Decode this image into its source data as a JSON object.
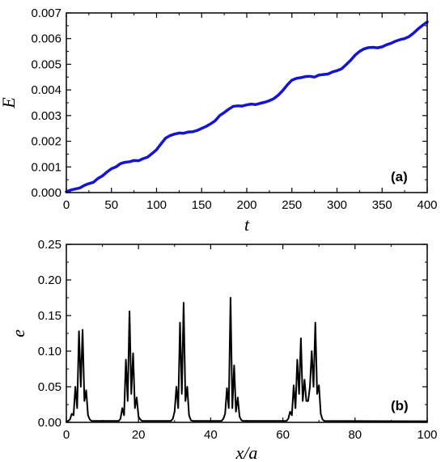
{
  "chart_data": [
    {
      "type": "line",
      "panel_label": "(a)",
      "xlabel": "t",
      "ylabel": "E",
      "xlim": [
        0,
        400
      ],
      "ylim": [
        0,
        0.007
      ],
      "xticks": [
        "0",
        "50",
        "100",
        "150",
        "200",
        "250",
        "300",
        "350",
        "400"
      ],
      "yticks": [
        "0.000",
        "0.001",
        "0.002",
        "0.003",
        "0.004",
        "0.005",
        "0.006",
        "0.007"
      ],
      "grid": false,
      "series": [
        {
          "color": "#1414d2",
          "x": [
            0,
            5,
            10,
            15,
            20,
            25,
            30,
            35,
            40,
            45,
            50,
            55,
            60,
            65,
            70,
            75,
            80,
            85,
            90,
            95,
            100,
            105,
            110,
            115,
            120,
            125,
            130,
            135,
            140,
            145,
            150,
            155,
            160,
            165,
            170,
            175,
            180,
            185,
            190,
            195,
            200,
            205,
            210,
            215,
            220,
            225,
            230,
            235,
            240,
            245,
            250,
            255,
            260,
            265,
            270,
            275,
            280,
            285,
            290,
            295,
            300,
            305,
            310,
            315,
            320,
            325,
            330,
            335,
            340,
            345,
            350,
            355,
            360,
            365,
            370,
            375,
            380,
            385,
            390,
            395,
            400
          ],
          "y": [
            3e-05,
            0.0001,
            0.00014,
            0.00018,
            0.00028,
            0.00035,
            0.0004,
            0.00055,
            0.00065,
            0.0008,
            0.00093,
            0.001,
            0.00113,
            0.00118,
            0.0012,
            0.00125,
            0.00124,
            0.00132,
            0.00138,
            0.00152,
            0.00167,
            0.0019,
            0.00212,
            0.00222,
            0.00228,
            0.00232,
            0.00231,
            0.00236,
            0.00237,
            0.00242,
            0.0025,
            0.00258,
            0.00268,
            0.0028,
            0.003,
            0.00312,
            0.00325,
            0.00336,
            0.00338,
            0.00337,
            0.00342,
            0.00345,
            0.00343,
            0.00348,
            0.00352,
            0.00358,
            0.00366,
            0.0038,
            0.00398,
            0.0042,
            0.00438,
            0.00445,
            0.00448,
            0.00452,
            0.00453,
            0.0045,
            0.00458,
            0.0046,
            0.00462,
            0.0047,
            0.00475,
            0.00482,
            0.00498,
            0.00515,
            0.00535,
            0.0055,
            0.0056,
            0.00565,
            0.00566,
            0.00564,
            0.00568,
            0.00576,
            0.00582,
            0.0059,
            0.00596,
            0.006,
            0.00608,
            0.00622,
            0.00638,
            0.00652,
            0.00665
          ]
        }
      ]
    },
    {
      "type": "line",
      "panel_label": "(b)",
      "xlabel": "x/a",
      "ylabel": "e",
      "xlim": [
        0,
        100
      ],
      "ylim": [
        0,
        0.25
      ],
      "xticks": [
        "0",
        "20",
        "40",
        "60",
        "80",
        "100"
      ],
      "yticks": [
        "0.00",
        "0.05",
        "0.10",
        "0.15",
        "0.20",
        "0.25"
      ],
      "grid": false,
      "series": [
        {
          "color": "#000000",
          "peaks": [
            [
              1.0,
              0.004
            ],
            [
              1.5,
              0.012
            ],
            [
              2.0,
              0.01
            ],
            [
              2.5,
              0.05
            ],
            [
              3.0,
              0.02
            ],
            [
              3.5,
              0.128
            ],
            [
              4.0,
              0.05
            ],
            [
              4.5,
              0.13
            ],
            [
              5.0,
              0.03
            ],
            [
              5.5,
              0.045
            ],
            [
              6.0,
              0.01
            ],
            [
              6.5,
              0.004
            ],
            [
              15.0,
              0.005
            ],
            [
              15.5,
              0.02
            ],
            [
              16.0,
              0.01
            ],
            [
              16.5,
              0.088
            ],
            [
              17.0,
              0.03
            ],
            [
              17.5,
              0.156
            ],
            [
              18.0,
              0.04
            ],
            [
              18.5,
              0.097
            ],
            [
              19.0,
              0.02
            ],
            [
              19.5,
              0.035
            ],
            [
              20.0,
              0.008
            ],
            [
              20.5,
              0.004
            ],
            [
              29.5,
              0.005
            ],
            [
              30.0,
              0.015
            ],
            [
              30.5,
              0.05
            ],
            [
              31.0,
              0.02
            ],
            [
              31.5,
              0.14
            ],
            [
              32.0,
              0.04
            ],
            [
              32.5,
              0.168
            ],
            [
              33.0,
              0.03
            ],
            [
              33.5,
              0.05
            ],
            [
              34.0,
              0.01
            ],
            [
              34.5,
              0.003
            ],
            [
              43.5,
              0.005
            ],
            [
              44.0,
              0.012
            ],
            [
              44.5,
              0.048
            ],
            [
              45.0,
              0.02
            ],
            [
              45.5,
              0.175
            ],
            [
              46.0,
              0.02
            ],
            [
              46.5,
              0.08
            ],
            [
              47.0,
              0.015
            ],
            [
              47.5,
              0.035
            ],
            [
              48.0,
              0.008
            ],
            [
              48.5,
              0.003
            ],
            [
              61.5,
              0.005
            ],
            [
              62.0,
              0.015
            ],
            [
              62.5,
              0.01
            ],
            [
              63.0,
              0.052
            ],
            [
              63.5,
              0.02
            ],
            [
              64.0,
              0.088
            ],
            [
              64.5,
              0.04
            ],
            [
              65.0,
              0.118
            ],
            [
              65.5,
              0.03
            ],
            [
              66.0,
              0.06
            ],
            [
              66.5,
              0.03
            ],
            [
              67.0,
              0.03
            ],
            [
              67.5,
              0.05
            ],
            [
              68.0,
              0.1
            ],
            [
              68.5,
              0.05
            ],
            [
              69.0,
              0.14
            ],
            [
              69.5,
              0.04
            ],
            [
              70.0,
              0.052
            ],
            [
              70.5,
              0.012
            ],
            [
              71.0,
              0.004
            ]
          ]
        }
      ]
    }
  ]
}
